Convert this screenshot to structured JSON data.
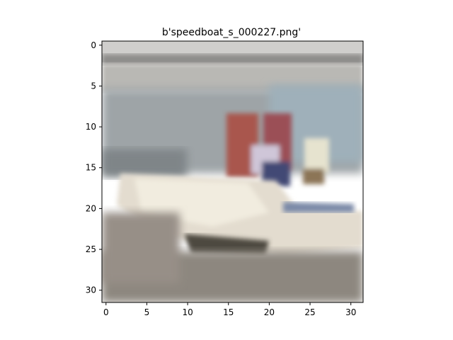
{
  "title": "b'speedboat_s_000227.png'",
  "chart_data": {
    "type": "image",
    "title": "b'speedboat_s_000227.png'",
    "image_grid": [
      32,
      32
    ],
    "x_ticks": [
      "0",
      "5",
      "10",
      "15",
      "20",
      "25",
      "30"
    ],
    "y_ticks": [
      "0",
      "5",
      "10",
      "15",
      "20",
      "25",
      "30"
    ],
    "xlim": [
      -0.5,
      31.5
    ],
    "ylim": [
      31.5,
      -0.5
    ]
  },
  "scene": {
    "subject": "speedboat",
    "colors": {
      "sky": "#cfcfcf",
      "horizon": "#8f8f8f",
      "water": "#aab2b7",
      "hull_white": "#ece6da",
      "hull_shadow": "#5b554d",
      "water_dark": "#8c867e",
      "person_red": "#a9574e",
      "person_blue": "#46507a",
      "person_pale": "#e8e2cf"
    }
  }
}
